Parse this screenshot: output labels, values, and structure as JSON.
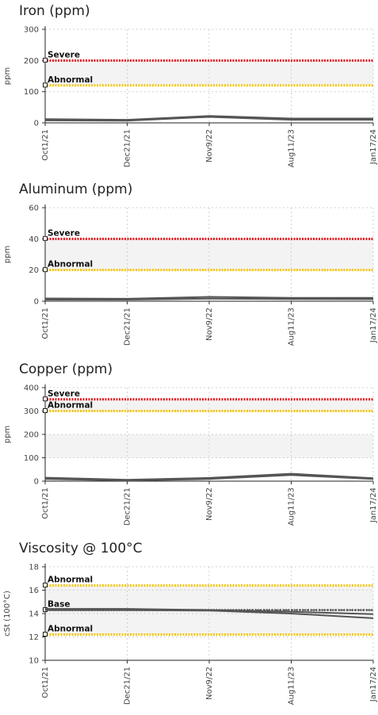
{
  "chart_data": [
    {
      "type": "line",
      "title": "Iron (ppm)",
      "ylabel": "ppm",
      "ylim": [
        0,
        300
      ],
      "yticks": [
        "0",
        "100",
        "200",
        "300"
      ],
      "x": [
        "Oct1/21",
        "Dec21/21",
        "Nov9/22",
        "Aug11/23",
        "Jan17/24"
      ],
      "series": [
        {
          "values": [
            12,
            10,
            22,
            14,
            14
          ],
          "color": "#555555"
        },
        {
          "values": [
            8,
            7,
            19,
            10,
            10
          ],
          "color": "#555555"
        }
      ],
      "limits": [
        {
          "label": "Severe",
          "value": 200,
          "color": "#e8141b"
        },
        {
          "label": "Abnormal",
          "value": 120,
          "color": "#f7c600"
        }
      ],
      "band": [
        120,
        200
      ]
    },
    {
      "type": "line",
      "title": "Aluminum (ppm)",
      "ylabel": "ppm",
      "ylim": [
        0,
        60
      ],
      "yticks": [
        "0",
        "20",
        "40",
        "60"
      ],
      "x": [
        "Oct1/21",
        "Dec21/21",
        "Nov9/22",
        "Aug11/23",
        "Jan17/24"
      ],
      "series": [
        {
          "values": [
            1.8,
            1.6,
            2.8,
            2.2,
            2.2
          ],
          "color": "#555555"
        },
        {
          "values": [
            1,
            1,
            1.7,
            1.4,
            1.3
          ],
          "color": "#555555"
        }
      ],
      "limits": [
        {
          "label": "Severe",
          "value": 40,
          "color": "#e8141b"
        },
        {
          "label": "Abnormal",
          "value": 20,
          "color": "#f7c600"
        }
      ],
      "band": [
        20,
        40
      ]
    },
    {
      "type": "line",
      "title": "Copper (ppm)",
      "ylabel": "ppm",
      "ylim": [
        0,
        400
      ],
      "yticks": [
        "0",
        "100",
        "200",
        "300",
        "400"
      ],
      "x": [
        "Oct1/21",
        "Dec21/21",
        "Nov9/22",
        "Aug11/23",
        "Jan17/24"
      ],
      "series": [
        {
          "values": [
            15,
            6,
            14,
            32,
            13
          ],
          "color": "#555555"
        },
        {
          "values": [
            9,
            3,
            9,
            26,
            9
          ],
          "color": "#555555"
        }
      ],
      "limits": [
        {
          "label": "Severe",
          "value": 350,
          "color": "#e8141b"
        },
        {
          "label": "Abnormal",
          "value": 300,
          "color": "#f7c600"
        }
      ],
      "band": [
        300,
        350
      ],
      "band2": [
        100,
        200
      ]
    },
    {
      "type": "line",
      "title": "Viscosity @ 100°C",
      "ylabel": "cSt (100°C)",
      "ylim": [
        10,
        18
      ],
      "yticks": [
        "10",
        "12",
        "14",
        "16",
        "18"
      ],
      "x": [
        "Oct1/21",
        "Dec21/21",
        "Nov9/22",
        "Aug11/23",
        "Jan17/24"
      ],
      "series": [
        {
          "values": [
            14.3,
            14.3,
            14.3,
            14.3,
            14.3
          ],
          "color": "#555555",
          "dashed": true
        },
        {
          "values": [
            14.4,
            14.4,
            14.3,
            14.15,
            13.95
          ],
          "color": "#555555"
        },
        {
          "values": [
            14.3,
            14.3,
            14.25,
            14.0,
            13.6
          ],
          "color": "#555555"
        }
      ],
      "limits": [
        {
          "label": "Abnormal",
          "value": 16.4,
          "color": "#f7c600"
        },
        {
          "label": "Base",
          "value": 14.3,
          "color": "#777777"
        },
        {
          "label": "Abnormal",
          "value": 12.2,
          "color": "#f7c600"
        }
      ],
      "band": [
        12.2,
        16.4
      ]
    }
  ]
}
